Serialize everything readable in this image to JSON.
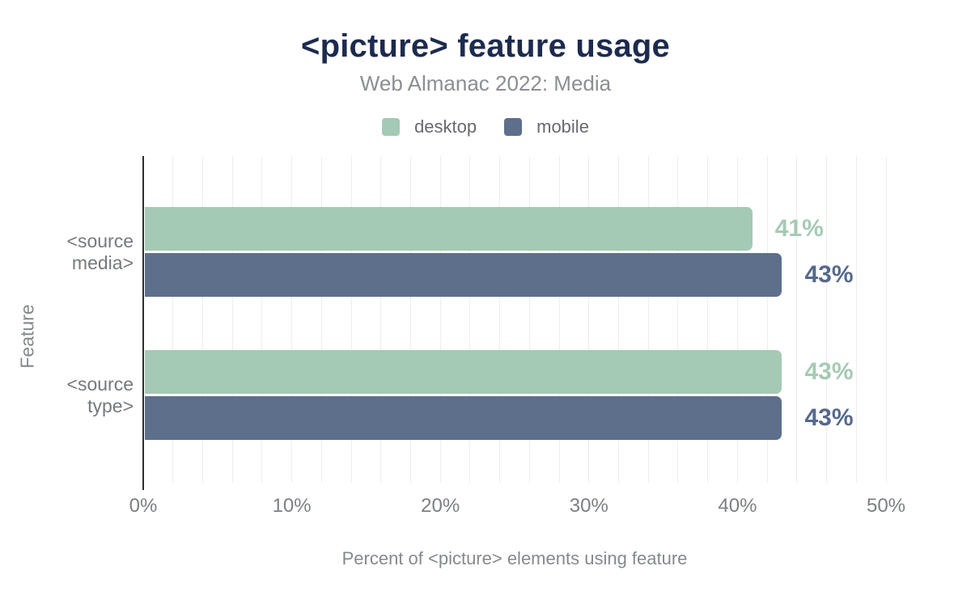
{
  "chart_data": {
    "type": "bar",
    "orientation": "horizontal",
    "title": "<picture> feature usage",
    "subtitle": "Web Almanac 2022: Media",
    "xlabel": "Percent of <picture> elements using feature",
    "ylabel": "Feature",
    "xlim": [
      0,
      50
    ],
    "grid": true,
    "minor_grid_step": 2,
    "legend_position": "top",
    "categories": [
      {
        "key": "source-media",
        "label": "<source media>",
        "lines": [
          "<source",
          "media>"
        ]
      },
      {
        "key": "source-type",
        "label": "<source type>",
        "lines": [
          "<source",
          "type>"
        ]
      }
    ],
    "series": [
      {
        "name": "desktop",
        "color": "#a4c9b4",
        "label_color": "#a5cab5",
        "values": [
          41,
          43
        ],
        "value_labels": [
          "41%",
          "43%"
        ]
      },
      {
        "name": "mobile",
        "color": "#5d6f8b",
        "label_color": "#54698e",
        "values": [
          43,
          43
        ],
        "value_labels": [
          "43%",
          "43%"
        ]
      }
    ],
    "xticks": [
      {
        "value": 0,
        "label": "0%"
      },
      {
        "value": 10,
        "label": "10%"
      },
      {
        "value": 20,
        "label": "20%"
      },
      {
        "value": 30,
        "label": "30%"
      },
      {
        "value": 40,
        "label": "40%"
      },
      {
        "value": 50,
        "label": "50%"
      }
    ],
    "title_color": "#1c2b4e",
    "axis_color": "#2d2d2d",
    "grid_color": "#ededed"
  }
}
